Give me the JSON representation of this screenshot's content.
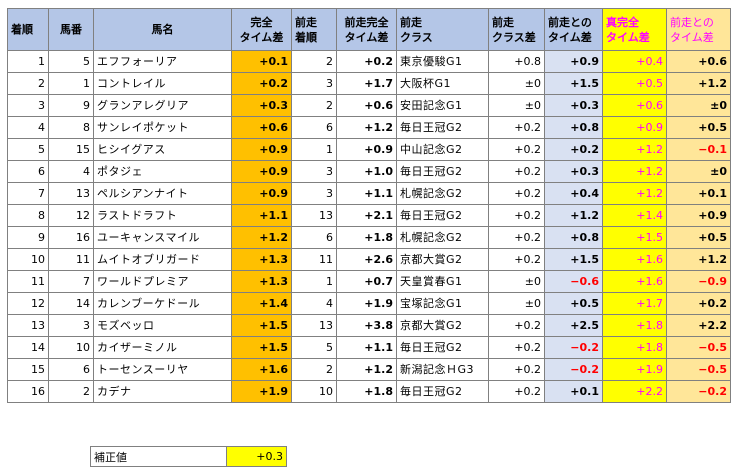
{
  "headers": {
    "h0": [
      "着順"
    ],
    "h1": [
      "馬番"
    ],
    "h2": [
      "馬名"
    ],
    "h3": [
      "完全",
      "タイム差"
    ],
    "h4": [
      "前走",
      "着順"
    ],
    "h5": [
      "前走完全",
      "タイム差"
    ],
    "h6": [
      "前走",
      "クラス"
    ],
    "h7": [
      "前走",
      "クラス差"
    ],
    "h8": [
      "前走との",
      "タイム差"
    ],
    "h9": [
      "真完全",
      "タイム差"
    ],
    "h10": [
      "前走との",
      "タイム差"
    ]
  },
  "colors": {
    "header_bg": "#b4c6e7",
    "orange": "#ffc000",
    "lavender": "#d9e1f2",
    "yellow": "#ffff00",
    "peach": "#ffe699",
    "negative": "#ff0000",
    "magenta": "#ff00ff"
  },
  "rows": [
    {
      "pos": "1",
      "num": "5",
      "name": "エフフォーリア",
      "t": "+0.1",
      "prev": "2",
      "pt": "+0.2",
      "cls": "東京優駿G1",
      "cd": "+0.8",
      "diff": "+0.9",
      "true": "+0.4",
      "tdiff": "+0.6"
    },
    {
      "pos": "2",
      "num": "1",
      "name": "コントレイル",
      "t": "+0.2",
      "prev": "3",
      "pt": "+1.7",
      "cls": "大阪杯G1",
      "cd": "±0",
      "diff": "+1.5",
      "true": "+0.5",
      "tdiff": "+1.2"
    },
    {
      "pos": "3",
      "num": "9",
      "name": "グランアレグリア",
      "t": "+0.3",
      "prev": "2",
      "pt": "+0.6",
      "cls": "安田記念G1",
      "cd": "±0",
      "diff": "+0.3",
      "true": "+0.6",
      "tdiff": "±0"
    },
    {
      "pos": "4",
      "num": "8",
      "name": "サンレイポケット",
      "t": "+0.6",
      "prev": "6",
      "pt": "+1.2",
      "cls": "毎日王冠G2",
      "cd": "+0.2",
      "diff": "+0.8",
      "true": "+0.9",
      "tdiff": "+0.5"
    },
    {
      "pos": "5",
      "num": "15",
      "name": "ヒシイグアス",
      "t": "+0.9",
      "prev": "1",
      "pt": "+0.9",
      "cls": "中山記念G2",
      "cd": "+0.2",
      "diff": "+0.2",
      "true": "+1.2",
      "tdiff": "−0.1"
    },
    {
      "pos": "6",
      "num": "4",
      "name": "ポタジェ",
      "t": "+0.9",
      "prev": "3",
      "pt": "+1.0",
      "cls": "毎日王冠G2",
      "cd": "+0.2",
      "diff": "+0.3",
      "true": "+1.2",
      "tdiff": "±0"
    },
    {
      "pos": "7",
      "num": "13",
      "name": "ペルシアンナイト",
      "t": "+0.9",
      "prev": "3",
      "pt": "+1.1",
      "cls": "札幌記念G2",
      "cd": "+0.2",
      "diff": "+0.4",
      "true": "+1.2",
      "tdiff": "+0.1"
    },
    {
      "pos": "8",
      "num": "12",
      "name": "ラストドラフト",
      "t": "+1.1",
      "prev": "13",
      "pt": "+2.1",
      "cls": "毎日王冠G2",
      "cd": "+0.2",
      "diff": "+1.2",
      "true": "+1.4",
      "tdiff": "+0.9"
    },
    {
      "pos": "9",
      "num": "16",
      "name": "ユーキャンスマイル",
      "t": "+1.2",
      "prev": "6",
      "pt": "+1.8",
      "cls": "札幌記念G2",
      "cd": "+0.2",
      "diff": "+0.8",
      "true": "+1.5",
      "tdiff": "+0.5"
    },
    {
      "pos": "10",
      "num": "11",
      "name": "ムイトオブリガード",
      "t": "+1.3",
      "prev": "11",
      "pt": "+2.6",
      "cls": "京都大賞G2",
      "cd": "+0.2",
      "diff": "+1.5",
      "true": "+1.6",
      "tdiff": "+1.2"
    },
    {
      "pos": "11",
      "num": "7",
      "name": "ワールドプレミア",
      "t": "+1.3",
      "prev": "1",
      "pt": "+0.7",
      "cls": "天皇賞春G1",
      "cd": "±0",
      "diff": "−0.6",
      "true": "+1.6",
      "tdiff": "−0.9"
    },
    {
      "pos": "12",
      "num": "14",
      "name": "カレンブーケドール",
      "t": "+1.4",
      "prev": "4",
      "pt": "+1.9",
      "cls": "宝塚記念G1",
      "cd": "±0",
      "diff": "+0.5",
      "true": "+1.7",
      "tdiff": "+0.2"
    },
    {
      "pos": "13",
      "num": "3",
      "name": "モズベッロ",
      "t": "+1.5",
      "prev": "13",
      "pt": "+3.8",
      "cls": "京都大賞G2",
      "cd": "+0.2",
      "diff": "+2.5",
      "true": "+1.8",
      "tdiff": "+2.2"
    },
    {
      "pos": "14",
      "num": "10",
      "name": "カイザーミノル",
      "t": "+1.5",
      "prev": "5",
      "pt": "+1.1",
      "cls": "毎日王冠G2",
      "cd": "+0.2",
      "diff": "−0.2",
      "true": "+1.8",
      "tdiff": "−0.5"
    },
    {
      "pos": "15",
      "num": "6",
      "name": "トーセンスーリヤ",
      "t": "+1.6",
      "prev": "2",
      "pt": "+1.2",
      "cls": "新潟記念ＨG3",
      "cd": "+0.2",
      "diff": "−0.2",
      "true": "+1.9",
      "tdiff": "−0.5"
    },
    {
      "pos": "16",
      "num": "2",
      "name": "カデナ",
      "t": "+1.9",
      "prev": "10",
      "pt": "+1.8",
      "cls": "毎日王冠G2",
      "cd": "+0.2",
      "diff": "+0.1",
      "true": "+2.2",
      "tdiff": "−0.2"
    }
  ],
  "correction": {
    "label": "補正値",
    "value": "+0.3"
  }
}
